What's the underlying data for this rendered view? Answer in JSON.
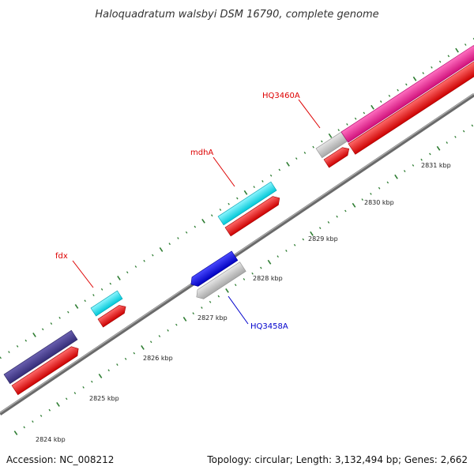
{
  "title": "Haloquadratum walsbyi DSM 16790, complete genome",
  "footer": {
    "accession": "Accession: NC_008212",
    "summary": "Topology: circular; Length: 3,132,494 bp; Genes: 2,662"
  },
  "scale_labels": [
    "2824 kbp",
    "2825 kbp",
    "2826 kbp",
    "2827 kbp",
    "2828 kbp",
    "2829 kbp",
    "2830 kbp",
    "2831 kbp"
  ],
  "gene_labels": [
    {
      "id": "fdx",
      "text": "fdx",
      "color": "#dd0000"
    },
    {
      "id": "mdha",
      "text": "mdhA",
      "color": "#dd0000"
    },
    {
      "id": "hq3460a",
      "text": "HQ3460A",
      "color": "#dd0000"
    },
    {
      "id": "hq3458a",
      "text": "HQ3458A",
      "color": "#0000cc"
    }
  ],
  "colors": {
    "backbone": "#888888",
    "cds": "#ff0000",
    "rna_cyan": "#00e5ee",
    "dark_purple": "#483d8b",
    "blue": "#0000ee",
    "gray": "#c8c8c8",
    "magenta": "#ee1493",
    "tick": "#2e7d32"
  }
}
